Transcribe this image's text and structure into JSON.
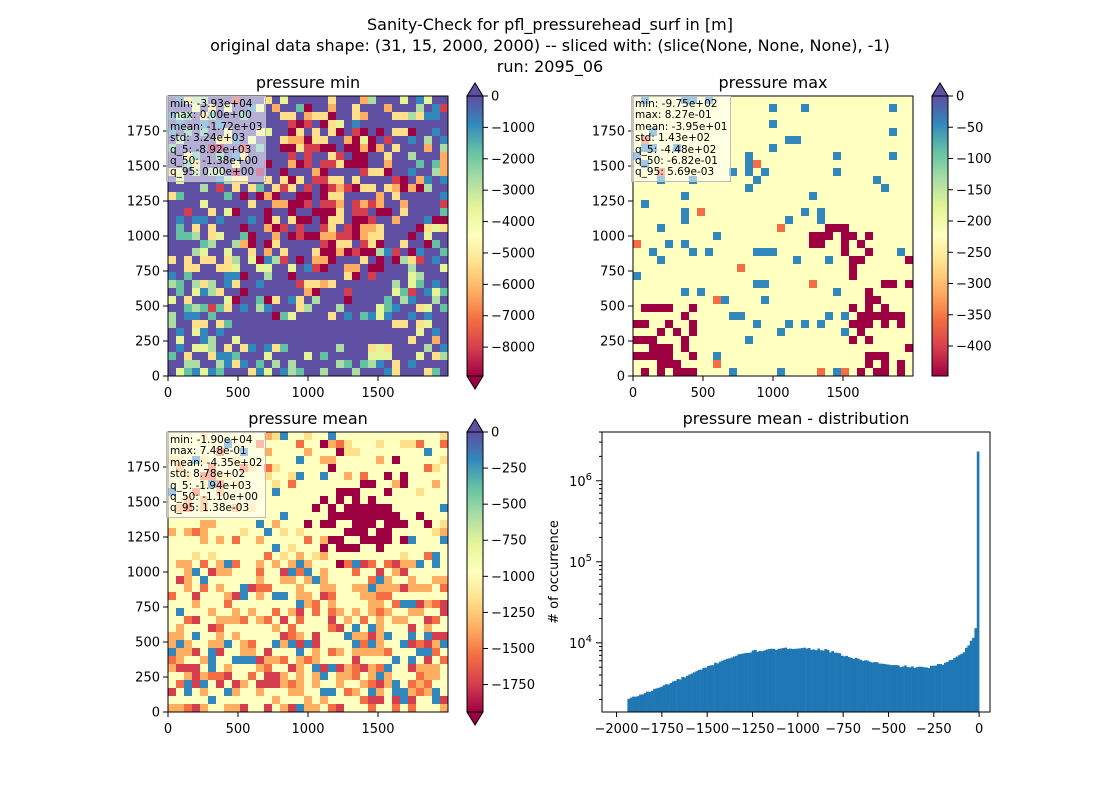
{
  "figure": {
    "suptitle_lines": [
      "Sanity-Check for pfl_pressurehead_surf in [m]",
      "original data shape: (31, 15, 2000, 2000) -- sliced with: (slice(None, None, None), -1)",
      "run: 2095_06"
    ]
  },
  "colors": {
    "spectral": [
      "#9e0142",
      "#d53e4f",
      "#f46d43",
      "#fdae61",
      "#fee08b",
      "#ffffbf",
      "#e6f598",
      "#abdda4",
      "#66c2a5",
      "#3288bd",
      "#5e4fa2"
    ],
    "histogram_bar": "#1f77b4"
  },
  "chart_data": [
    {
      "type": "heatmap",
      "title": "pressure min",
      "x_ticks": [
        0,
        500,
        1000,
        1500
      ],
      "y_ticks": [
        0,
        250,
        500,
        750,
        1000,
        1250,
        1500,
        1750
      ],
      "x_range": [
        0,
        2000
      ],
      "y_range": [
        0,
        2000
      ],
      "colorbar": {
        "ticks": [
          0,
          -1000,
          -2000,
          -3000,
          -4000,
          -5000,
          -6000,
          -7000,
          -8000
        ],
        "range": [
          -8920,
          0
        ],
        "extend": "both",
        "cmap": "Spectral"
      },
      "stats": [
        "min: -3.93e+04",
        "max: 0.00e+00",
        "mean: -1.72e+03",
        "std: 3.24e+03",
        "q_5: -8.92e+03",
        "q_50: -1.38e+00",
        "q_95: 0.00e+00"
      ],
      "dominant_fraction": 0.55
    },
    {
      "type": "heatmap",
      "title": "pressure max",
      "x_ticks": [
        0,
        500,
        1000,
        1500
      ],
      "y_ticks": [
        0,
        250,
        500,
        750,
        1000,
        1250,
        1500,
        1750
      ],
      "x_range": [
        0,
        2000
      ],
      "y_range": [
        0,
        2000
      ],
      "colorbar": {
        "ticks": [
          0,
          -50,
          -100,
          -150,
          -200,
          -250,
          -300,
          -350,
          -400
        ],
        "range": [
          -448,
          0
        ],
        "extend": "max",
        "cmap": "Spectral"
      },
      "stats": [
        "min: -9.75e+02",
        "max: 8.27e-01",
        "mean: -3.95e+01",
        "std: 1.43e+02",
        "q_5: -4.48e+02",
        "q_50: -6.82e-01",
        "q_95: 5.69e-03"
      ],
      "dominant_fraction": 0.88
    },
    {
      "type": "heatmap",
      "title": "pressure mean",
      "x_ticks": [
        0,
        500,
        1000,
        1500
      ],
      "y_ticks": [
        0,
        250,
        500,
        750,
        1000,
        1250,
        1500,
        1750
      ],
      "x_range": [
        0,
        2000
      ],
      "y_range": [
        0,
        2000
      ],
      "colorbar": {
        "ticks": [
          0,
          -250,
          -500,
          -750,
          -1000,
          -1250,
          -1500,
          -1750
        ],
        "range": [
          -1940,
          0
        ],
        "extend": "both",
        "cmap": "Spectral"
      },
      "stats": [
        "min: -1.90e+04",
        "max: 7.48e-01",
        "mean: -4.35e+02",
        "std: 8.78e+02",
        "q_5: -1.94e+03",
        "q_50: -1.10e+00",
        "q_95: 1.38e-03"
      ],
      "dominant_fraction": 0.55
    },
    {
      "type": "bar",
      "title": "pressure mean - distribution",
      "ylabel": "# of occurrence",
      "y_scale": "log",
      "x_ticks": [
        "-2000",
        "-1750",
        "-1500",
        "-1250",
        "-1000",
        "-750",
        "-500",
        "-250",
        "0"
      ],
      "x_tick_values": [
        -2000,
        -1750,
        -1500,
        -1250,
        -1000,
        -750,
        -500,
        -250,
        0
      ],
      "y_tick_labels": [
        "10^4",
        "10^5",
        "10^6"
      ],
      "y_tick_values": [
        10000,
        100000,
        1000000
      ],
      "x_range": [
        -2080,
        60
      ],
      "y_range": [
        1400,
        4000000
      ],
      "bins": {
        "start": -1940,
        "end": 0,
        "count": 150
      },
      "profile_knots": [
        {
          "x": -1940,
          "y": 2000
        },
        {
          "x": -1800,
          "y": 2600
        },
        {
          "x": -1600,
          "y": 4000
        },
        {
          "x": -1400,
          "y": 6300
        },
        {
          "x": -1250,
          "y": 7900
        },
        {
          "x": -1000,
          "y": 8700
        },
        {
          "x": -850,
          "y": 8200
        },
        {
          "x": -700,
          "y": 6500
        },
        {
          "x": -500,
          "y": 5300
        },
        {
          "x": -300,
          "y": 4900
        },
        {
          "x": -180,
          "y": 5600
        },
        {
          "x": -80,
          "y": 8000
        },
        {
          "x": -30,
          "y": 12000
        },
        {
          "x": -12,
          "y": 17000
        },
        {
          "x": 0,
          "y": 2300000
        }
      ]
    }
  ]
}
